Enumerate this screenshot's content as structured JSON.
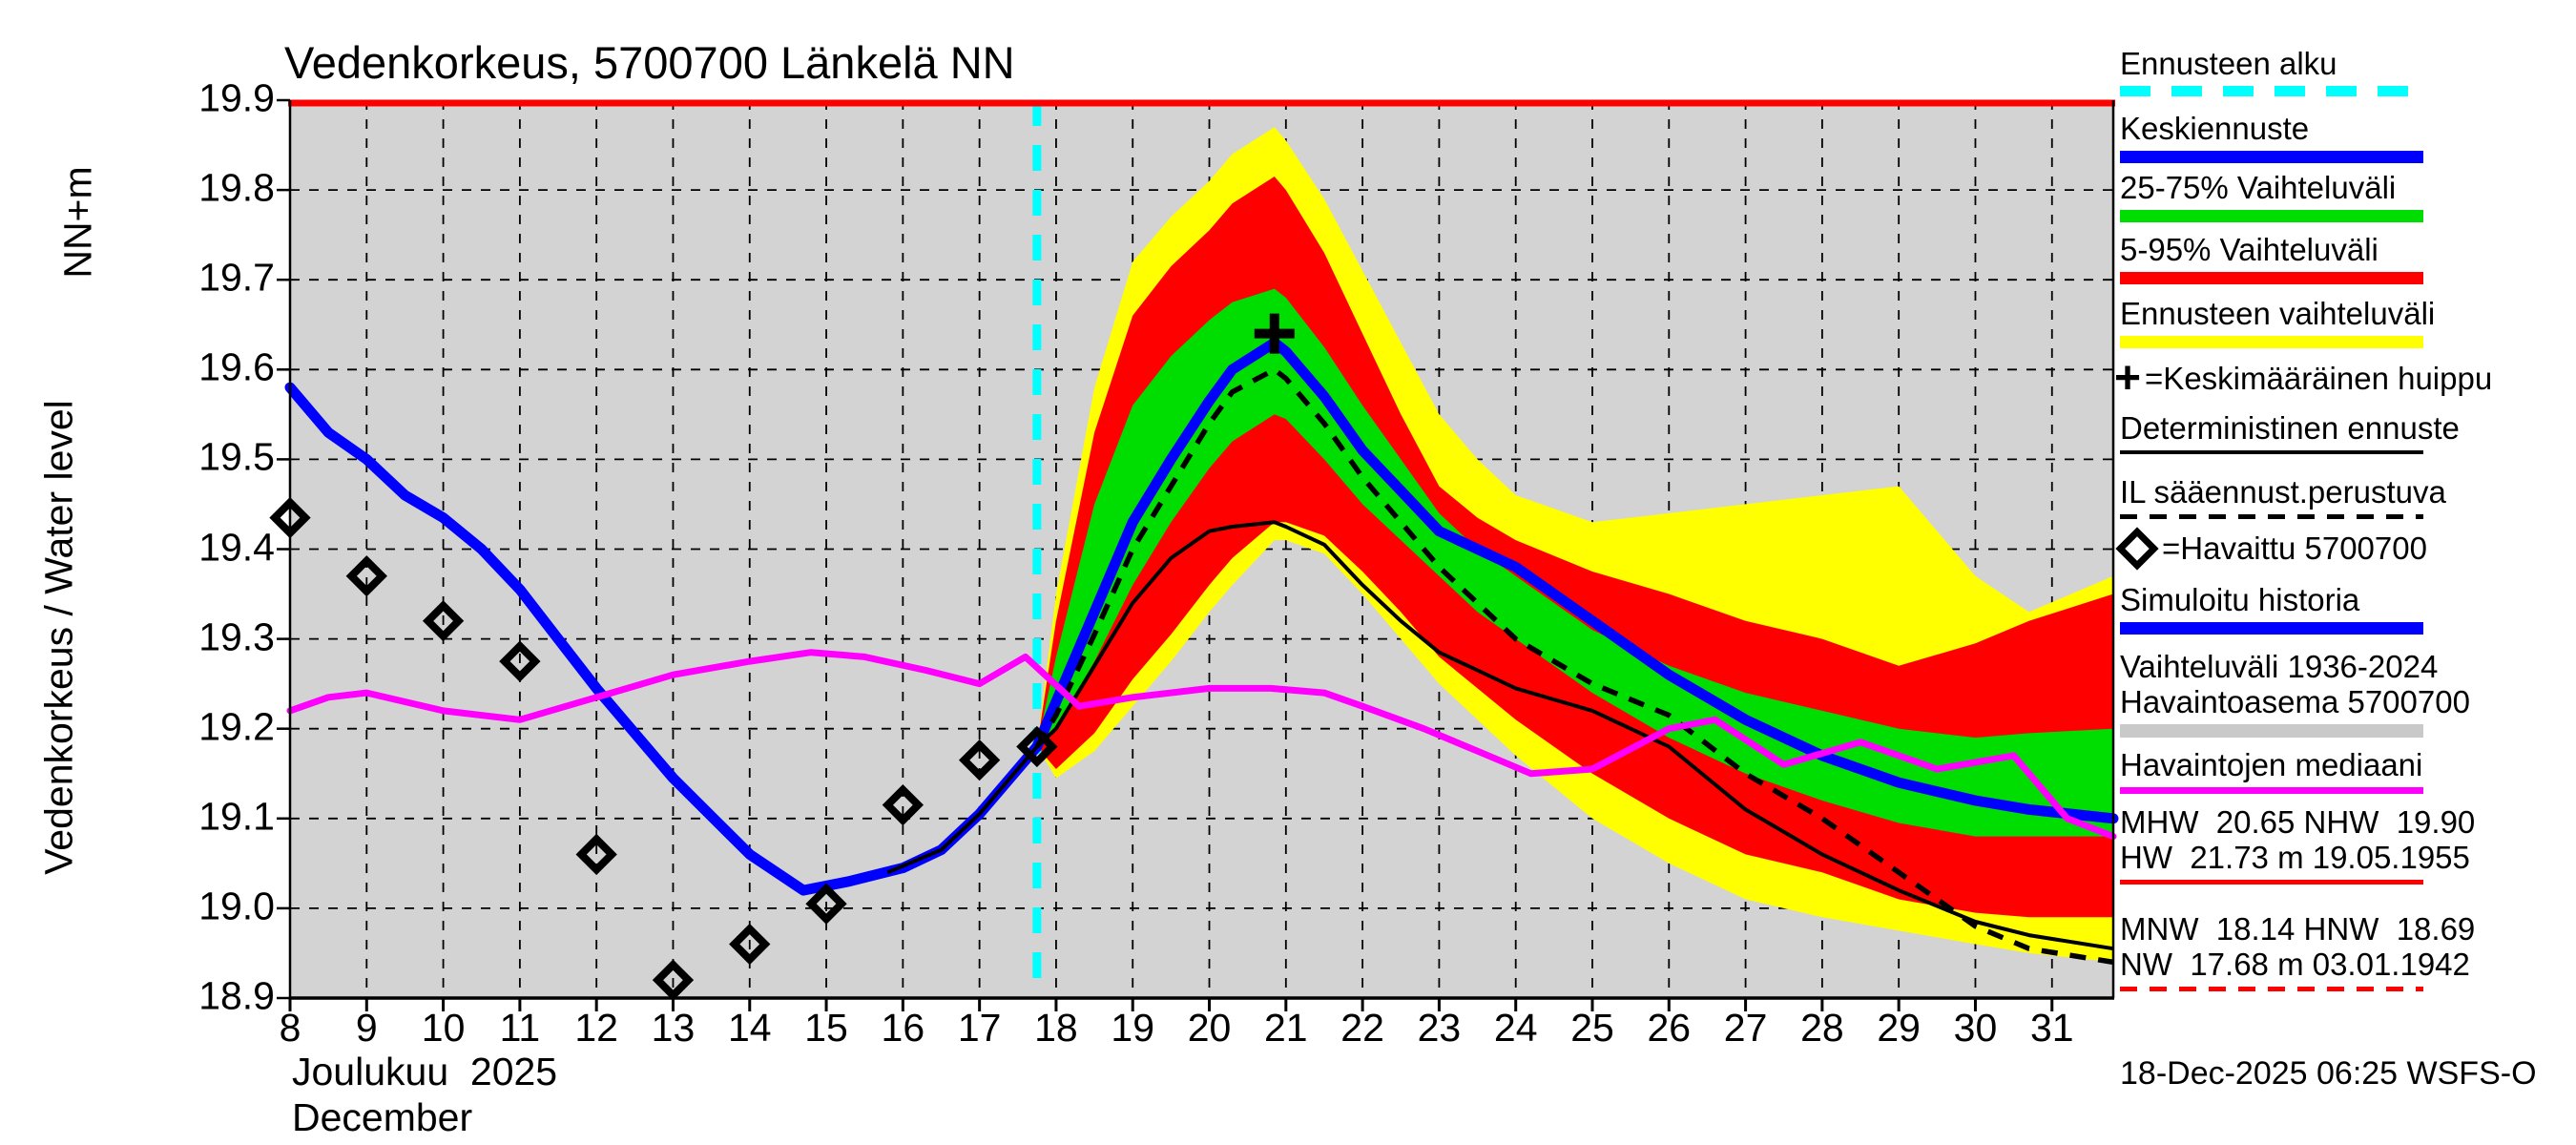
{
  "title": "Vedenkorkeus, 5700700 Länkelä NN",
  "y_axis": {
    "unit": "NN+m",
    "label": "Vedenkorkeus / Water level",
    "tick_labels": [
      "18.9",
      "19.0",
      "19.1",
      "19.2",
      "19.3",
      "19.4",
      "19.5",
      "19.6",
      "19.7",
      "19.8",
      "19.9"
    ]
  },
  "x_axis": {
    "month_fi": "Joulukuu  2025",
    "month_en": "December",
    "tick_labels": [
      "8",
      "9",
      "10",
      "11",
      "12",
      "13",
      "14",
      "15",
      "16",
      "17",
      "18",
      "19",
      "20",
      "21",
      "22",
      "23",
      "24",
      "25",
      "26",
      "27",
      "28",
      "29",
      "30",
      "31"
    ]
  },
  "timestamp": "18-Dec-2025 06:25 WSFS-O",
  "legend": {
    "items": [
      {
        "id": "forecast-start",
        "label": "Ennusteen alku",
        "swatch": "cyan-dashed"
      },
      {
        "id": "mean-forecast",
        "label": "Keskiennuste",
        "swatch": "blue-bar"
      },
      {
        "id": "range-25-75",
        "label": "25-75% Vaihteluväli",
        "swatch": "green-bar"
      },
      {
        "id": "range-5-95",
        "label": "5-95% Vaihteluväli",
        "swatch": "red-bar"
      },
      {
        "id": "forecast-range",
        "label": "Ennusteen vaihteluväli",
        "swatch": "yellow-bar"
      },
      {
        "id": "mean-peak",
        "symbol": "plus",
        "label": "=Keskimääräinen huippu"
      },
      {
        "id": "deterministic",
        "label": "Deterministinen ennuste",
        "swatch": "black-line"
      },
      {
        "id": "il-weather-based",
        "label": "IL sääennust.perustuva",
        "swatch": "black-dashed"
      },
      {
        "id": "observed",
        "symbol": "diamond",
        "label": "=Havaittu 5700700"
      },
      {
        "id": "simulated-history",
        "label": "Simuloitu historia",
        "swatch": "blue-bar"
      },
      {
        "id": "obs-range",
        "label": "Vaihteluväli 1936-2024",
        "label2": "Havaintoasema 5700700",
        "swatch": "gray-bar"
      },
      {
        "id": "obs-median",
        "label": "Havaintojen mediaani",
        "swatch": "magenta-line"
      },
      {
        "id": "high-stats",
        "label": "MHW  20.65 NHW  19.90",
        "label2": "HW  21.73 m 19.05.1955",
        "swatch": "red-line"
      },
      {
        "id": "low-stats",
        "label": "MNW  18.14 HNW  18.69",
        "label2": "NW  17.68 m 03.01.1942",
        "swatch": "red-dashed"
      }
    ]
  },
  "chart_data": {
    "type": "line",
    "title": "Vedenkorkeus, 5700700 Länkelä NN",
    "xlabel": "Joulukuu 2025 / December",
    "ylabel": "Vedenkorkeus / Water level (NN+m)",
    "x_domain": [
      8,
      31.8
    ],
    "y_domain": [
      18.9,
      19.9
    ],
    "x_ticks": [
      8,
      9,
      10,
      11,
      12,
      13,
      14,
      15,
      16,
      17,
      18,
      19,
      20,
      21,
      22,
      23,
      24,
      25,
      26,
      27,
      28,
      29,
      30,
      31
    ],
    "y_ticks": [
      18.9,
      19.0,
      19.1,
      19.2,
      19.3,
      19.4,
      19.5,
      19.6,
      19.7,
      19.8,
      19.9
    ],
    "y_gridlines": [
      19.0,
      19.1,
      19.2,
      19.3,
      19.4,
      19.5,
      19.6,
      19.7,
      19.8
    ],
    "grid": true,
    "legend_position": "right",
    "forecast_start_day": 17.75,
    "reference_line_value": 19.9,
    "colors": {
      "mean_forecast": "#0000ff",
      "simulated_history": "#0000ff",
      "band_25_75": "#00dd00",
      "band_5_95": "#ff0000",
      "band_range": "#ffff00",
      "median": "#ff00ff",
      "forecast_start": "#00ffff",
      "observed": "#000000",
      "deterministic": "#000000",
      "plot_bg": "#d3d3d3",
      "reference_line": "#ff0000"
    },
    "bands": {
      "days": [
        17.75,
        18,
        18.5,
        19,
        19.5,
        20,
        20.3,
        20.85,
        21,
        21.5,
        22,
        22.5,
        23,
        23.5,
        24,
        25,
        26,
        27,
        28,
        29,
        30,
        30.7,
        31.8
      ],
      "yellow_top": [
        19.18,
        19.35,
        19.58,
        19.72,
        19.77,
        19.81,
        19.84,
        19.87,
        19.855,
        19.79,
        19.71,
        19.63,
        19.55,
        19.5,
        19.46,
        19.43,
        19.44,
        19.45,
        19.46,
        19.47,
        19.37,
        19.33,
        19.37
      ],
      "yellow_bottom": [
        19.18,
        19.145,
        19.175,
        19.225,
        19.275,
        19.33,
        19.36,
        19.41,
        19.41,
        19.395,
        19.35,
        19.3,
        19.25,
        19.21,
        19.17,
        19.1,
        19.05,
        19.01,
        18.99,
        18.975,
        18.96,
        18.95,
        18.94
      ],
      "red_top": [
        19.18,
        19.32,
        19.53,
        19.66,
        19.715,
        19.755,
        19.785,
        19.815,
        19.8,
        19.73,
        19.64,
        19.55,
        19.47,
        19.435,
        19.41,
        19.375,
        19.35,
        19.32,
        19.3,
        19.27,
        19.295,
        19.32,
        19.35
      ],
      "red_bottom": [
        19.18,
        19.155,
        19.195,
        19.255,
        19.305,
        19.36,
        19.39,
        19.43,
        19.43,
        19.415,
        19.375,
        19.33,
        19.28,
        19.245,
        19.21,
        19.15,
        19.1,
        19.06,
        19.04,
        19.01,
        18.995,
        18.99,
        18.99
      ],
      "green_top": [
        19.18,
        19.28,
        19.45,
        19.56,
        19.615,
        19.655,
        19.675,
        19.69,
        19.68,
        19.625,
        19.56,
        19.5,
        19.44,
        19.4,
        19.37,
        19.31,
        19.27,
        19.24,
        19.22,
        19.2,
        19.19,
        19.195,
        19.2
      ],
      "green_bottom": [
        19.18,
        19.2,
        19.275,
        19.36,
        19.43,
        19.49,
        19.52,
        19.55,
        19.545,
        19.5,
        19.45,
        19.41,
        19.37,
        19.33,
        19.3,
        19.24,
        19.19,
        19.15,
        19.12,
        19.095,
        19.08,
        19.08,
        19.08
      ]
    },
    "series": {
      "history": {
        "name": "Simuloitu historia",
        "days": [
          8,
          8.5,
          9,
          9.5,
          10,
          10.5,
          11,
          11.5,
          12,
          13,
          14,
          14.7,
          15.3,
          16,
          16.5,
          17,
          17.75
        ],
        "values": [
          19.58,
          19.53,
          19.5,
          19.46,
          19.435,
          19.4,
          19.355,
          19.3,
          19.245,
          19.145,
          19.06,
          19.02,
          19.03,
          19.045,
          19.065,
          19.105,
          19.18
        ]
      },
      "mean_forecast": {
        "name": "Keskiennuste",
        "days": [
          17.75,
          18,
          18.5,
          19,
          19.5,
          20,
          20.3,
          20.85,
          21,
          21.5,
          22,
          22.5,
          23,
          23.5,
          24,
          25,
          26,
          27,
          28,
          29,
          30,
          30.7,
          31.8
        ],
        "values": [
          19.18,
          19.23,
          19.33,
          19.43,
          19.5,
          19.565,
          19.6,
          19.63,
          19.62,
          19.57,
          19.51,
          19.465,
          19.42,
          19.4,
          19.38,
          19.32,
          19.26,
          19.21,
          19.17,
          19.14,
          19.12,
          19.11,
          19.1
        ]
      },
      "il_weather_forecast": {
        "name": "IL sääennust.perustuva",
        "days": [
          17.75,
          18,
          18.5,
          19,
          19.5,
          20,
          20.3,
          20.85,
          21,
          21.5,
          22,
          22.5,
          23,
          23.5,
          24,
          25,
          26,
          27,
          28,
          29,
          30,
          30.7,
          31.8
        ],
        "values": [
          19.18,
          19.215,
          19.305,
          19.4,
          19.47,
          19.54,
          19.575,
          19.6,
          19.59,
          19.54,
          19.48,
          19.43,
          19.38,
          19.34,
          19.3,
          19.25,
          19.215,
          19.15,
          19.1,
          19.04,
          18.98,
          18.955,
          18.94
        ]
      },
      "deterministic": {
        "name": "Deterministinen ennuste",
        "days": [
          17.75,
          18,
          18.5,
          19,
          19.5,
          20,
          20.3,
          20.85,
          21,
          21.5,
          22,
          22.5,
          23,
          23.5,
          24,
          25,
          26,
          27,
          28,
          29,
          30,
          30.7,
          31.8
        ],
        "values": [
          19.18,
          19.2,
          19.27,
          19.34,
          19.39,
          19.42,
          19.425,
          19.43,
          19.425,
          19.405,
          19.36,
          19.32,
          19.285,
          19.265,
          19.245,
          19.22,
          19.18,
          19.11,
          19.06,
          19.02,
          18.985,
          18.97,
          18.955
        ]
      },
      "deterministic_pre": {
        "name": "Deterministinen ennuste (historia)",
        "days": [
          15.8,
          16.5,
          17,
          17.75
        ],
        "values": [
          19.04,
          19.065,
          19.105,
          19.18
        ]
      },
      "median": {
        "name": "Havaintojen mediaani",
        "days": [
          8,
          8.5,
          9,
          10,
          11,
          12,
          13,
          14,
          14.8,
          15.5,
          16.3,
          17,
          17.6,
          18.3,
          19,
          20,
          20.8,
          21.5,
          22,
          22.8,
          23.5,
          24.2,
          25,
          26,
          26.6,
          27.5,
          28.5,
          29.5,
          30.5,
          31.2,
          31.8
        ],
        "values": [
          19.22,
          19.235,
          19.24,
          19.22,
          19.21,
          19.235,
          19.26,
          19.275,
          19.285,
          19.28,
          19.265,
          19.25,
          19.28,
          19.225,
          19.235,
          19.245,
          19.245,
          19.24,
          19.225,
          19.2,
          19.175,
          19.15,
          19.155,
          19.2,
          19.21,
          19.16,
          19.185,
          19.155,
          19.17,
          19.1,
          19.08
        ]
      }
    },
    "observed_points": [
      [
        8,
        19.435
      ],
      [
        9,
        19.37
      ],
      [
        10,
        19.32
      ],
      [
        11,
        19.275
      ],
      [
        12,
        19.06
      ],
      [
        13,
        18.92
      ],
      [
        14,
        18.96
      ],
      [
        15,
        19.005
      ],
      [
        16,
        19.115
      ],
      [
        17,
        19.165
      ],
      [
        17.75,
        19.18
      ]
    ],
    "mean_peak_marker": [
      20.85,
      19.64
    ]
  }
}
